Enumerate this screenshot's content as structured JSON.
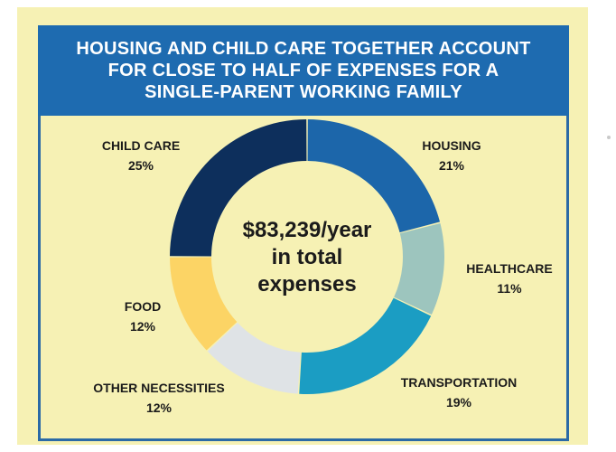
{
  "header": {
    "title": "HOUSING AND CHILD CARE TOGETHER ACCOUNT FOR CLOSE TO HALF OF EXPENSES FOR A SINGLE-PARENT WORKING FAMILY"
  },
  "chart_data": {
    "type": "pie",
    "donut": true,
    "title": "HOUSING AND CHILD CARE TOGETHER ACCOUNT FOR CLOSE TO HALF OF EXPENSES FOR A SINGLE-PARENT WORKING FAMILY",
    "center_text": [
      "$83,239/year",
      "in total",
      "expenses"
    ],
    "slices": [
      {
        "name": "HOUSING",
        "value": 21,
        "label": "21%",
        "color": "#1c66aa"
      },
      {
        "name": "HEALTHCARE",
        "value": 11,
        "label": "11%",
        "color": "#9dc5be"
      },
      {
        "name": "TRANSPORTATION",
        "value": 19,
        "label": "19%",
        "color": "#1b9dc3"
      },
      {
        "name": "OTHER NECESSITIES",
        "value": 12,
        "label": "12%",
        "color": "#dfe3e6"
      },
      {
        "name": "FOOD",
        "value": 12,
        "label": "12%",
        "color": "#fcd465"
      },
      {
        "name": "CHILD CARE",
        "value": 25,
        "label": "25%",
        "color": "#0d2f5c"
      }
    ]
  },
  "colors": {
    "background": "#f6f1b4",
    "banner": "#1e6bb0",
    "frame": "#2b6aa6"
  }
}
